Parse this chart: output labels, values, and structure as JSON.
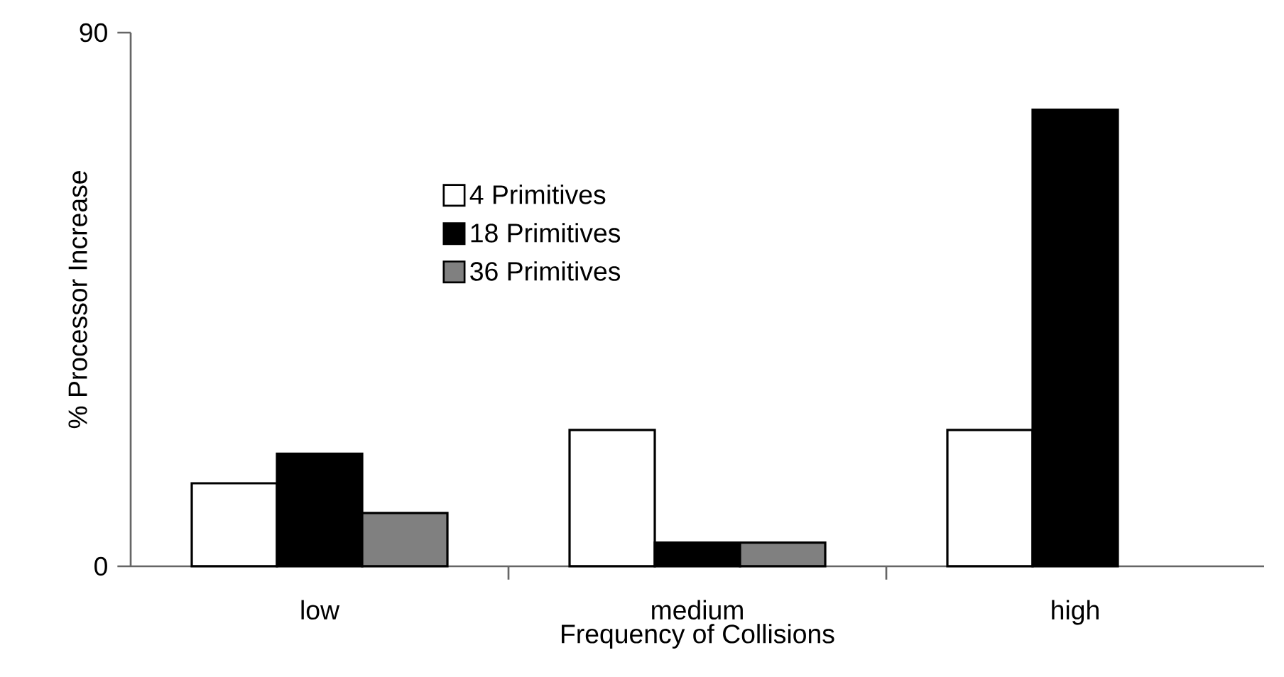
{
  "chart_data": {
    "type": "bar",
    "xlabel": "Frequency of Collisions",
    "ylabel": "% Processor Increase",
    "categories": [
      "low",
      "medium",
      "high"
    ],
    "series": [
      {
        "name": "4 Primitives",
        "color": "#ffffff",
        "values": [
          14,
          23,
          23
        ]
      },
      {
        "name": "18 Primitives",
        "color": "#000000",
        "values": [
          19,
          4,
          77
        ]
      },
      {
        "name": "36 Primitives",
        "color": "#808080",
        "values": [
          9,
          4,
          null
        ]
      }
    ],
    "ylim": [
      0,
      90
    ],
    "yticks": [
      0,
      90
    ],
    "grid": false,
    "legend": "top left"
  }
}
